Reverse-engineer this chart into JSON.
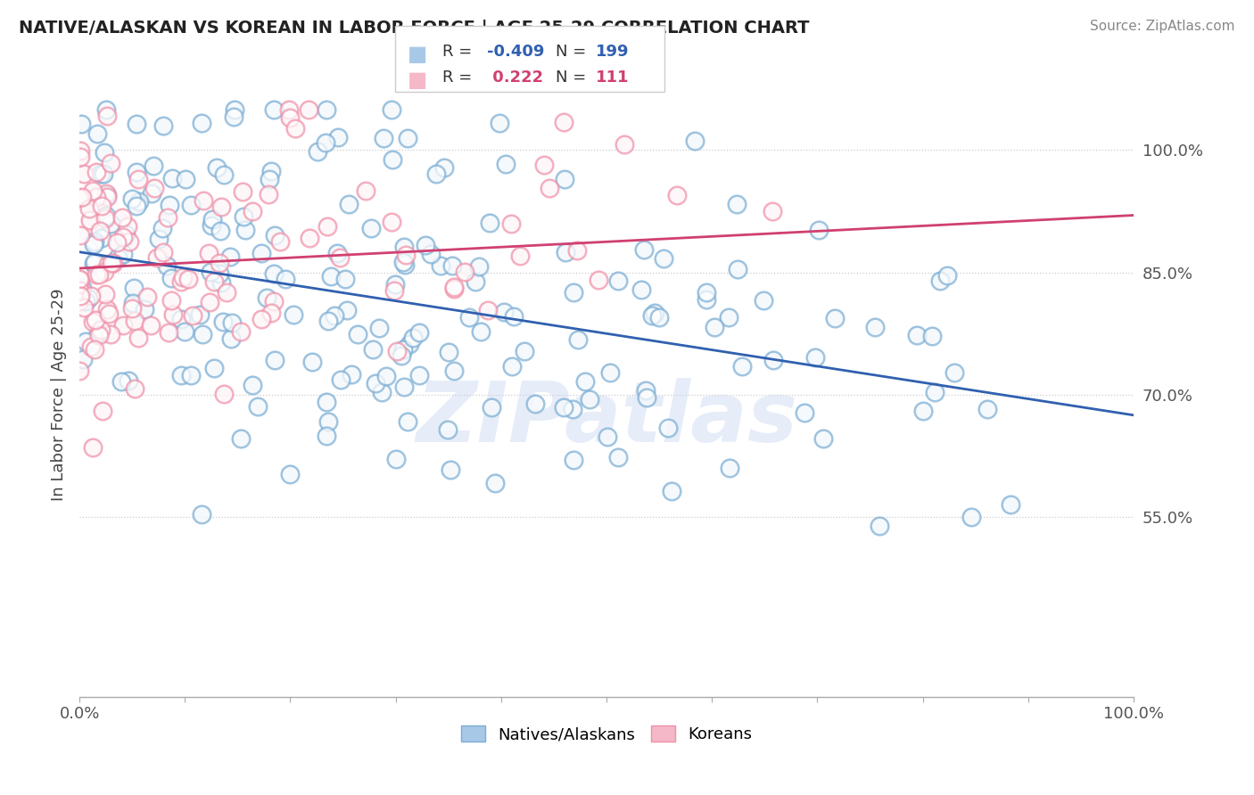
{
  "title": "NATIVE/ALASKAN VS KOREAN IN LABOR FORCE | AGE 25-29 CORRELATION CHART",
  "source": "Source: ZipAtlas.com",
  "ylabel": "In Labor Force | Age 25-29",
  "blue_R": -0.409,
  "blue_N": 199,
  "pink_R": 0.222,
  "pink_N": 111,
  "blue_color": "#a8c8e8",
  "pink_color": "#f5b8c8",
  "blue_edge_color": "#7aadd4",
  "pink_edge_color": "#f090a8",
  "blue_line_color": "#3060b0",
  "pink_line_color": "#d04070",
  "blue_label": "Natives/Alaskans",
  "pink_label": "Koreans",
  "watermark": "ZIPatlas",
  "y_tick_labels": [
    "55.0%",
    "70.0%",
    "85.0%",
    "100.0%"
  ],
  "y_tick_values": [
    0.55,
    0.7,
    0.85,
    1.0
  ],
  "xlim": [
    0.0,
    1.0
  ],
  "ylim": [
    0.33,
    1.07
  ],
  "blue_intercept": 0.875,
  "blue_slope": -0.2,
  "pink_intercept": 0.855,
  "pink_slope": 0.065,
  "background_color": "#ffffff",
  "seed": 12345
}
